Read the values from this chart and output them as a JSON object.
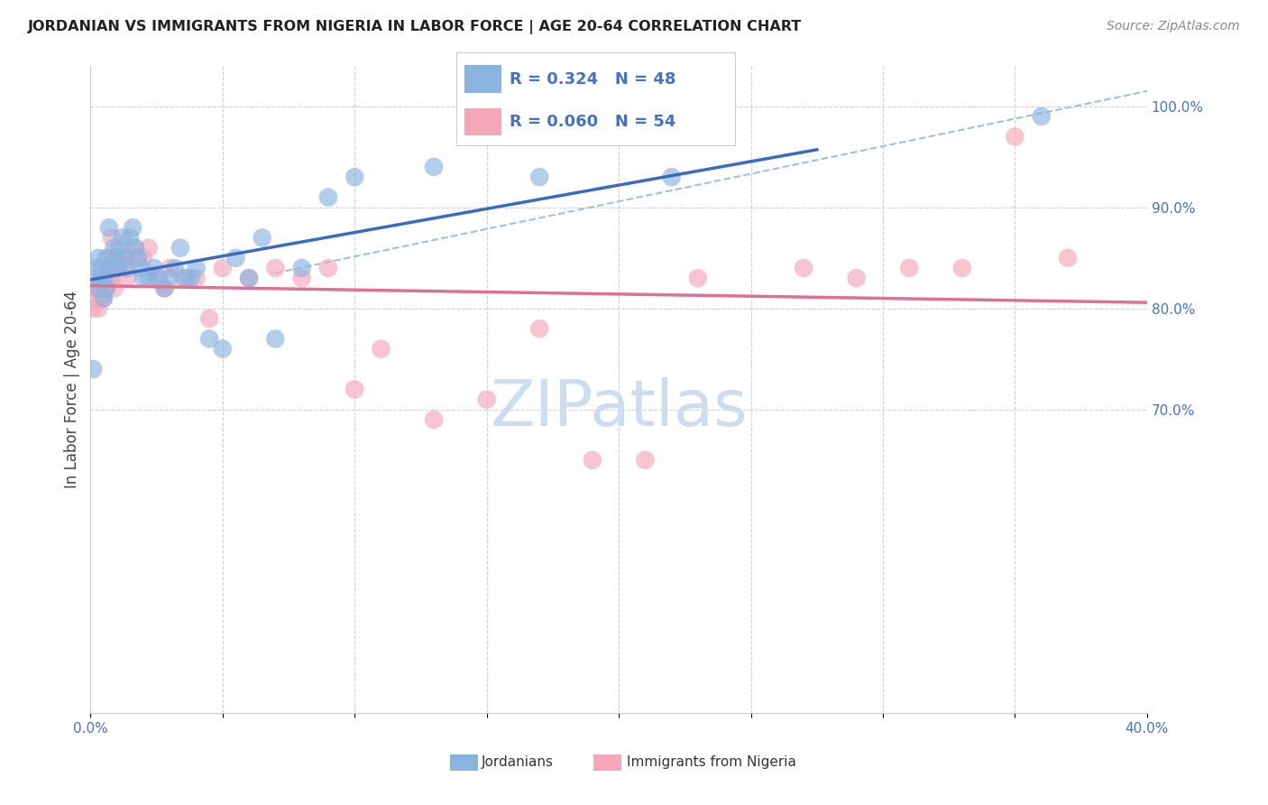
{
  "title": "JORDANIAN VS IMMIGRANTS FROM NIGERIA IN LABOR FORCE | AGE 20-64 CORRELATION CHART",
  "source": "Source: ZipAtlas.com",
  "ylabel": "In Labor Force | Age 20-64",
  "xlim": [
    0.0,
    0.4
  ],
  "ylim": [
    0.4,
    1.04
  ],
  "blue_color": "#8ab4e0",
  "pink_color": "#f4a7b9",
  "trend_blue": "#3a6bbf",
  "trend_pink": "#e07090",
  "dash_color": "#a0c0e0",
  "watermark_color": "#ccddf0",
  "legend_R1": "0.324",
  "legend_N1": "48",
  "legend_R2": "0.060",
  "legend_N2": "54",
  "blue_scatter_x": [
    0.001,
    0.002,
    0.003,
    0.003,
    0.004,
    0.004,
    0.005,
    0.005,
    0.006,
    0.006,
    0.007,
    0.008,
    0.009,
    0.01,
    0.01,
    0.011,
    0.012,
    0.013,
    0.014,
    0.015,
    0.016,
    0.017,
    0.018,
    0.019,
    0.02,
    0.022,
    0.024,
    0.026,
    0.028,
    0.03,
    0.032,
    0.034,
    0.036,
    0.038,
    0.04,
    0.045,
    0.05,
    0.055,
    0.06,
    0.065,
    0.07,
    0.08,
    0.09,
    0.1,
    0.13,
    0.17,
    0.22,
    0.36
  ],
  "blue_scatter_y": [
    0.74,
    0.84,
    0.82,
    0.85,
    0.83,
    0.84,
    0.81,
    0.83,
    0.82,
    0.85,
    0.88,
    0.84,
    0.86,
    0.84,
    0.85,
    0.86,
    0.87,
    0.85,
    0.84,
    0.87,
    0.88,
    0.86,
    0.85,
    0.84,
    0.83,
    0.83,
    0.84,
    0.83,
    0.82,
    0.83,
    0.84,
    0.86,
    0.83,
    0.83,
    0.84,
    0.77,
    0.76,
    0.85,
    0.83,
    0.87,
    0.77,
    0.84,
    0.91,
    0.93,
    0.94,
    0.93,
    0.93,
    0.99
  ],
  "pink_scatter_x": [
    0.001,
    0.001,
    0.002,
    0.002,
    0.003,
    0.003,
    0.004,
    0.004,
    0.005,
    0.005,
    0.006,
    0.006,
    0.007,
    0.007,
    0.008,
    0.008,
    0.009,
    0.009,
    0.01,
    0.01,
    0.011,
    0.012,
    0.013,
    0.014,
    0.015,
    0.016,
    0.018,
    0.02,
    0.022,
    0.025,
    0.028,
    0.03,
    0.035,
    0.04,
    0.045,
    0.05,
    0.06,
    0.07,
    0.08,
    0.09,
    0.1,
    0.11,
    0.13,
    0.15,
    0.17,
    0.19,
    0.21,
    0.23,
    0.27,
    0.29,
    0.31,
    0.33,
    0.35,
    0.37
  ],
  "pink_scatter_y": [
    0.8,
    0.82,
    0.81,
    0.83,
    0.8,
    0.82,
    0.83,
    0.81,
    0.82,
    0.81,
    0.82,
    0.84,
    0.83,
    0.85,
    0.83,
    0.87,
    0.82,
    0.84,
    0.84,
    0.85,
    0.84,
    0.85,
    0.84,
    0.83,
    0.85,
    0.86,
    0.85,
    0.85,
    0.86,
    0.83,
    0.82,
    0.84,
    0.83,
    0.83,
    0.79,
    0.84,
    0.83,
    0.84,
    0.83,
    0.84,
    0.72,
    0.76,
    0.69,
    0.71,
    0.78,
    0.65,
    0.65,
    0.83,
    0.84,
    0.83,
    0.84,
    0.84,
    0.97,
    0.85
  ],
  "blue_line_x": [
    0.0,
    0.275
  ],
  "pink_line_x": [
    0.0,
    0.4
  ],
  "dash_line_x": [
    0.07,
    0.4
  ],
  "dash_line_y": [
    0.835,
    1.015
  ]
}
